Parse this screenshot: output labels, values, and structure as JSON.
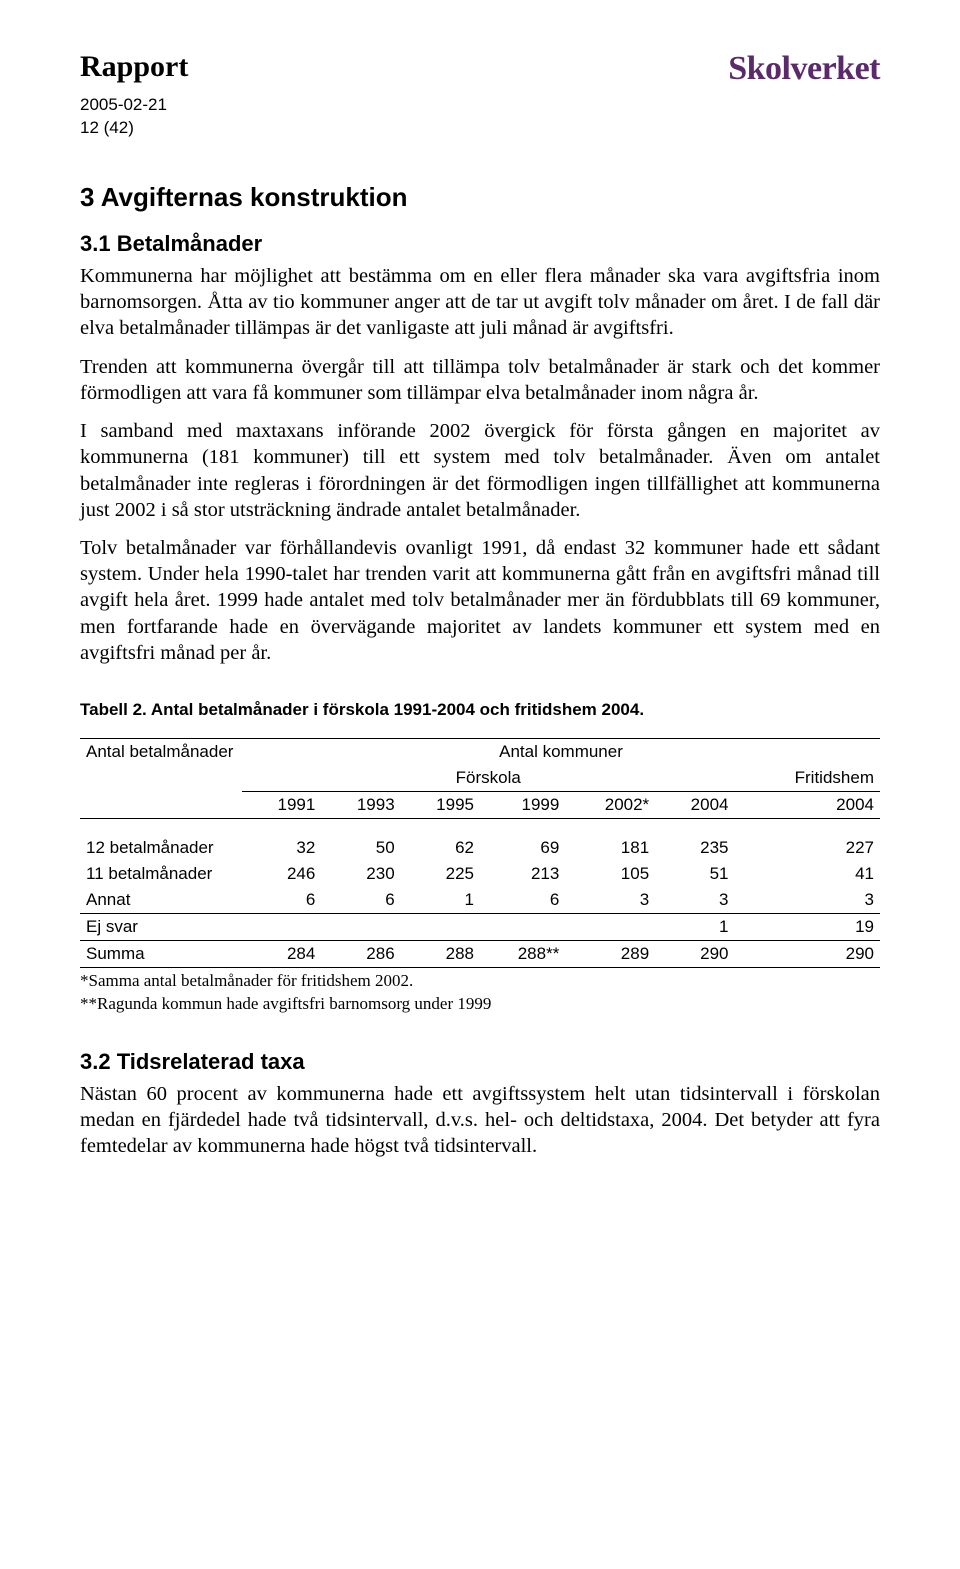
{
  "header": {
    "report_label": "Rapport",
    "date": "2005-02-21",
    "page_ref": "12 (42)",
    "logo_text": "Skolverket"
  },
  "section3": {
    "heading": "3   Avgifternas konstruktion",
    "sub31_heading": "3.1   Betalmånader",
    "p1": "Kommunerna har möjlighet att bestämma om en eller flera månader ska vara avgiftsfria inom barnomsorgen. Åtta av tio kommuner anger att de tar ut avgift tolv månader om året. I de fall där elva betalmånader tillämpas är det vanligaste att juli månad är avgiftsfri.",
    "p2": "Trenden att kommunerna övergår till att tillämpa tolv betalmånader är stark och det kommer förmodligen att vara få kommuner som tillämpar elva betalmånader inom några år.",
    "p3": "I samband med maxtaxans införande 2002 övergick för första gången en majoritet av kommunerna (181 kommuner) till ett system med tolv betalmånader. Även om antalet betalmånader inte regleras i förordningen är det förmodligen ingen tillfällighet att kommunerna just 2002 i så stor utsträckning ändrade antalet betalmånader.",
    "p4": "Tolv betalmånader var förhållandevis ovanligt 1991, då endast 32 kommuner hade ett sådant system. Under hela 1990-talet har trenden varit att kommunerna gått från en avgiftsfri månad till avgift hela året. 1999 hade antalet med tolv betalmånader mer än fördubblats till 69 kommuner, men fortfarande hade en övervägande majoritet av landets kommuner ett system med en avgiftsfri månad per år."
  },
  "table2": {
    "caption": "Tabell 2. Antal betalmånader i förskola 1991-2004 och fritidshem 2004.",
    "head_left": "Antal betalmånader",
    "head_right": "Antal kommuner",
    "col_forskola": "Förskola",
    "col_fritidshem": "Fritidshem",
    "years": [
      "1991",
      "1993",
      "1995",
      "1999",
      "2002*",
      "2004",
      "2004"
    ],
    "rows": [
      {
        "label": "12 betalmånader",
        "vals": [
          "32",
          "50",
          "62",
          "69",
          "181",
          "235",
          "227"
        ]
      },
      {
        "label": "11 betalmånader",
        "vals": [
          "246",
          "230",
          "225",
          "213",
          "105",
          "51",
          "41"
        ]
      },
      {
        "label": "Annat",
        "vals": [
          "6",
          "6",
          "1",
          "6",
          "3",
          "3",
          "3"
        ]
      }
    ],
    "ejsvar": {
      "label": "Ej svar",
      "vals": [
        "",
        "",
        "",
        "",
        "",
        "1",
        "19"
      ]
    },
    "summa": {
      "label": "Summa",
      "vals": [
        "284",
        "286",
        "288",
        "288**",
        "289",
        "290",
        "290"
      ]
    },
    "footnote1": "*Samma antal betalmånader för fritidshem 2002.",
    "footnote2": "**Ragunda kommun hade avgiftsfri barnomsorg under 1999"
  },
  "section32": {
    "heading": "3.2   Tidsrelaterad taxa",
    "p1": "Nästan 60 procent av kommunerna hade ett avgiftssystem helt utan tidsintervall i förskolan medan en fjärdedel hade två tidsintervall, d.v.s. hel- och deltidstaxa, 2004. Det betyder att fyra femtedelar av kommunerna hade högst två tidsintervall."
  }
}
